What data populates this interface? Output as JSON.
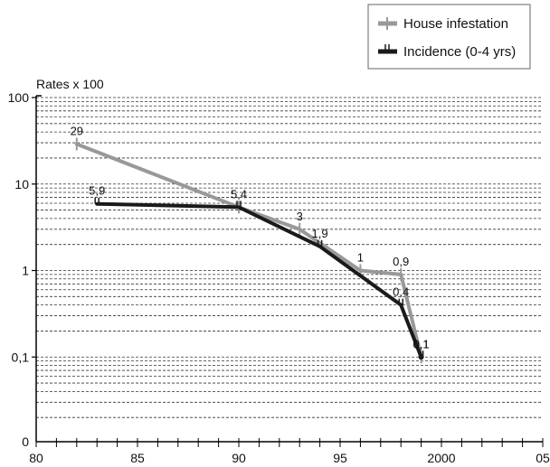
{
  "chart_data": {
    "type": "line",
    "title": "",
    "ylabel": "Rates x 100",
    "xlabel": "",
    "xlim": [
      1980,
      2005
    ],
    "ylim": [
      0.01,
      100
    ],
    "y_scale": "log",
    "y_zero_label": "0",
    "x_ticks": [
      {
        "value": 1980,
        "label": "80"
      },
      {
        "value": 1985,
        "label": "85"
      },
      {
        "value": 1990,
        "label": "90"
      },
      {
        "value": 1995,
        "label": "95"
      },
      {
        "value": 2000,
        "label": "2000"
      },
      {
        "value": 2005,
        "label": "05"
      }
    ],
    "y_ticks": [
      {
        "value": 100,
        "label": "100"
      },
      {
        "value": 10,
        "label": "10"
      },
      {
        "value": 1,
        "label": "1"
      },
      {
        "value": 0.1,
        "label": "0,1"
      }
    ],
    "grid": true,
    "legend_position": "top-right",
    "series": [
      {
        "name": "House infestation",
        "color": "#999999",
        "x": [
          1982,
          1990,
          1993,
          1996,
          1998,
          1999
        ],
        "y": [
          29,
          5.4,
          3,
          1,
          0.9,
          0.1
        ],
        "labels": [
          "29",
          "5,4",
          "3",
          "1",
          "0,9",
          "0,1"
        ]
      },
      {
        "name": "Incidence (0-4 yrs)",
        "color": "#1a1a1a",
        "x": [
          1983,
          1990,
          1994,
          1998,
          1999
        ],
        "y": [
          5.9,
          5.4,
          1.9,
          0.4,
          0.1
        ],
        "labels": [
          "5,9",
          "",
          "1,9",
          "0,4",
          "0,1"
        ]
      }
    ]
  }
}
